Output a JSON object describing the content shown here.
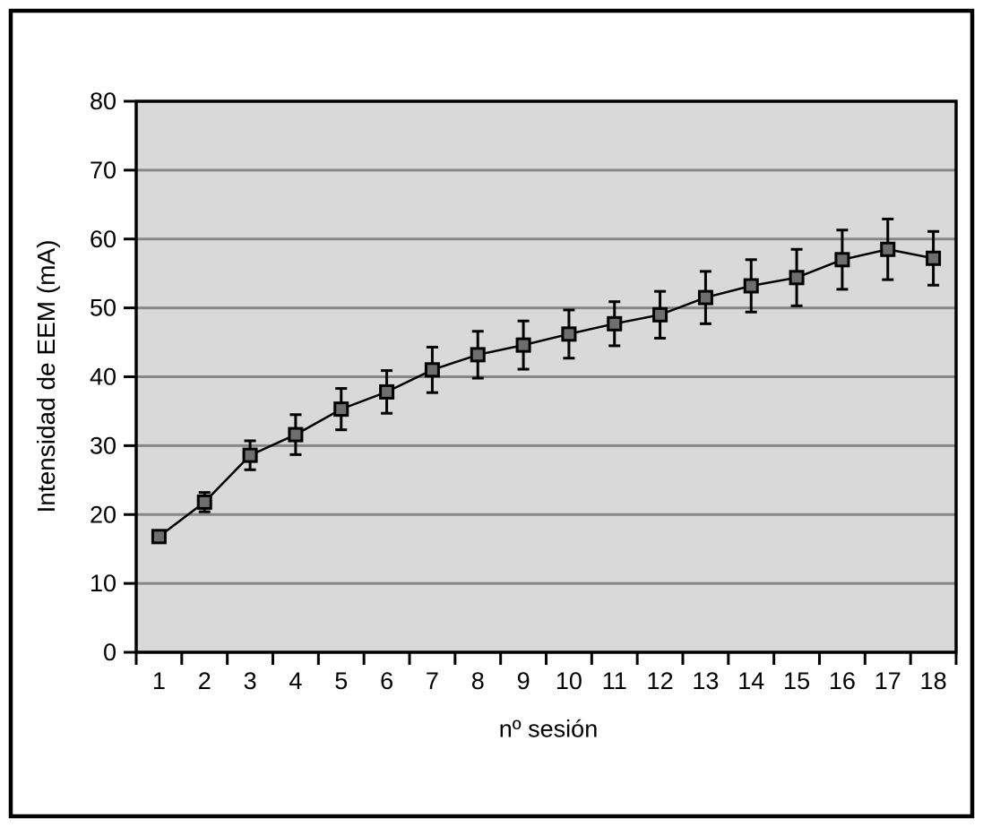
{
  "chart_data": {
    "type": "line",
    "title": "",
    "xlabel": "nº sesión",
    "ylabel": "Intensidad de EEM (mA)",
    "x": [
      1,
      2,
      3,
      4,
      5,
      6,
      7,
      8,
      9,
      10,
      11,
      12,
      13,
      14,
      15,
      16,
      17,
      18
    ],
    "series": [
      {
        "name": "Intensidad de EEM",
        "values": [
          16.8,
          21.8,
          28.6,
          31.6,
          35.3,
          37.8,
          41.0,
          43.2,
          44.6,
          46.2,
          47.7,
          49.0,
          51.5,
          53.2,
          54.4,
          57.0,
          58.5,
          57.2
        ],
        "errors": [
          0.8,
          1.4,
          2.1,
          2.9,
          3.0,
          3.1,
          3.3,
          3.4,
          3.5,
          3.5,
          3.2,
          3.4,
          3.8,
          3.8,
          4.1,
          4.3,
          4.4,
          3.9
        ]
      }
    ],
    "ylim": [
      0,
      80
    ],
    "yticks": [
      0,
      10,
      20,
      30,
      40,
      50,
      60,
      70,
      80
    ],
    "grid": "horizontal",
    "legend_position": "none",
    "marker": "square-with-error-bars"
  },
  "style": {
    "page_bg": "#ffffff",
    "plot_bg": "#d9d9d9",
    "grid_color": "#878787",
    "axis_color": "#000000",
    "line_color": "#000000",
    "marker_fill": "#6e6e6e",
    "marker_stroke": "#000000",
    "frame_color": "#000000",
    "text_color": "#000000"
  }
}
